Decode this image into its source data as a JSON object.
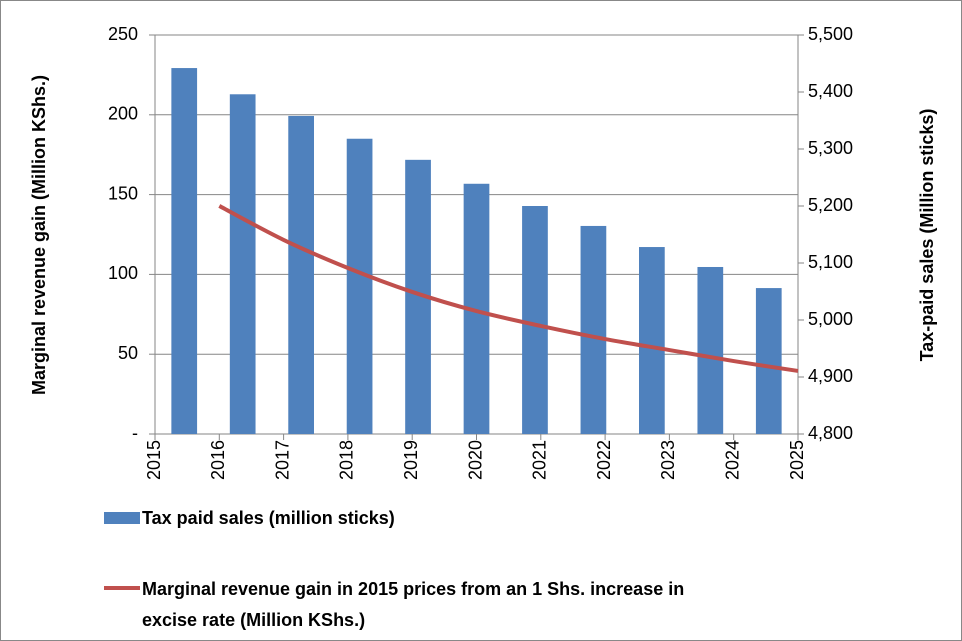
{
  "chart_data": {
    "type": "bar-line",
    "y_label": "Marginal revenue gain (Million KShs.)",
    "y2_label": "Tax-paid sales (Million sticks)",
    "xlim": [
      2015,
      2025
    ],
    "xticks": [
      2015,
      2016,
      2017,
      2018,
      2019,
      2020,
      2021,
      2022,
      2023,
      2024,
      2025
    ],
    "ylim": [
      0,
      250
    ],
    "yticks": [
      {
        "value": 0,
        "label": "-"
      },
      50,
      100,
      150,
      200,
      250
    ],
    "y2lim": [
      4800,
      5500
    ],
    "y2ticks": [
      {
        "value": 4800,
        "label": "4,800"
      },
      {
        "value": 4900,
        "label": "4,900"
      },
      {
        "value": 5000,
        "label": "5,000"
      },
      {
        "value": 5100,
        "label": "5,100"
      },
      {
        "value": 5200,
        "label": "5,200"
      },
      {
        "value": 5300,
        "label": "5,300"
      },
      {
        "value": 5400,
        "label": "5,400"
      },
      {
        "value": 5500,
        "label": "5,500"
      }
    ],
    "grid": true,
    "legend": "bottom",
    "series": [
      {
        "name": "Tax paid sales (million sticks)",
        "type": "bar",
        "axis": "y2",
        "color": "#4f81bd",
        "x": [
          2015,
          2016,
          2017,
          2018,
          2019,
          2020,
          2021,
          2022,
          2023,
          2024,
          2025
        ],
        "values": [
          5442,
          5396,
          5358,
          5318,
          5281,
          5239,
          5200,
          5165,
          5128,
          5093,
          5056
        ]
      },
      {
        "name": "Marginal revenue gain in 2015 prices from an 1 Shs. increase in excise rate (Million KShs.)",
        "type": "line",
        "color": "#c0504d",
        "x": [
          2016,
          2017,
          2018,
          2019,
          2020,
          2021,
          2022,
          2023,
          2024,
          2025
        ],
        "values": [
          142.9,
          121.6,
          104,
          89,
          77,
          67.7,
          59.5,
          52.6,
          45.7,
          39.5
        ]
      }
    ]
  }
}
